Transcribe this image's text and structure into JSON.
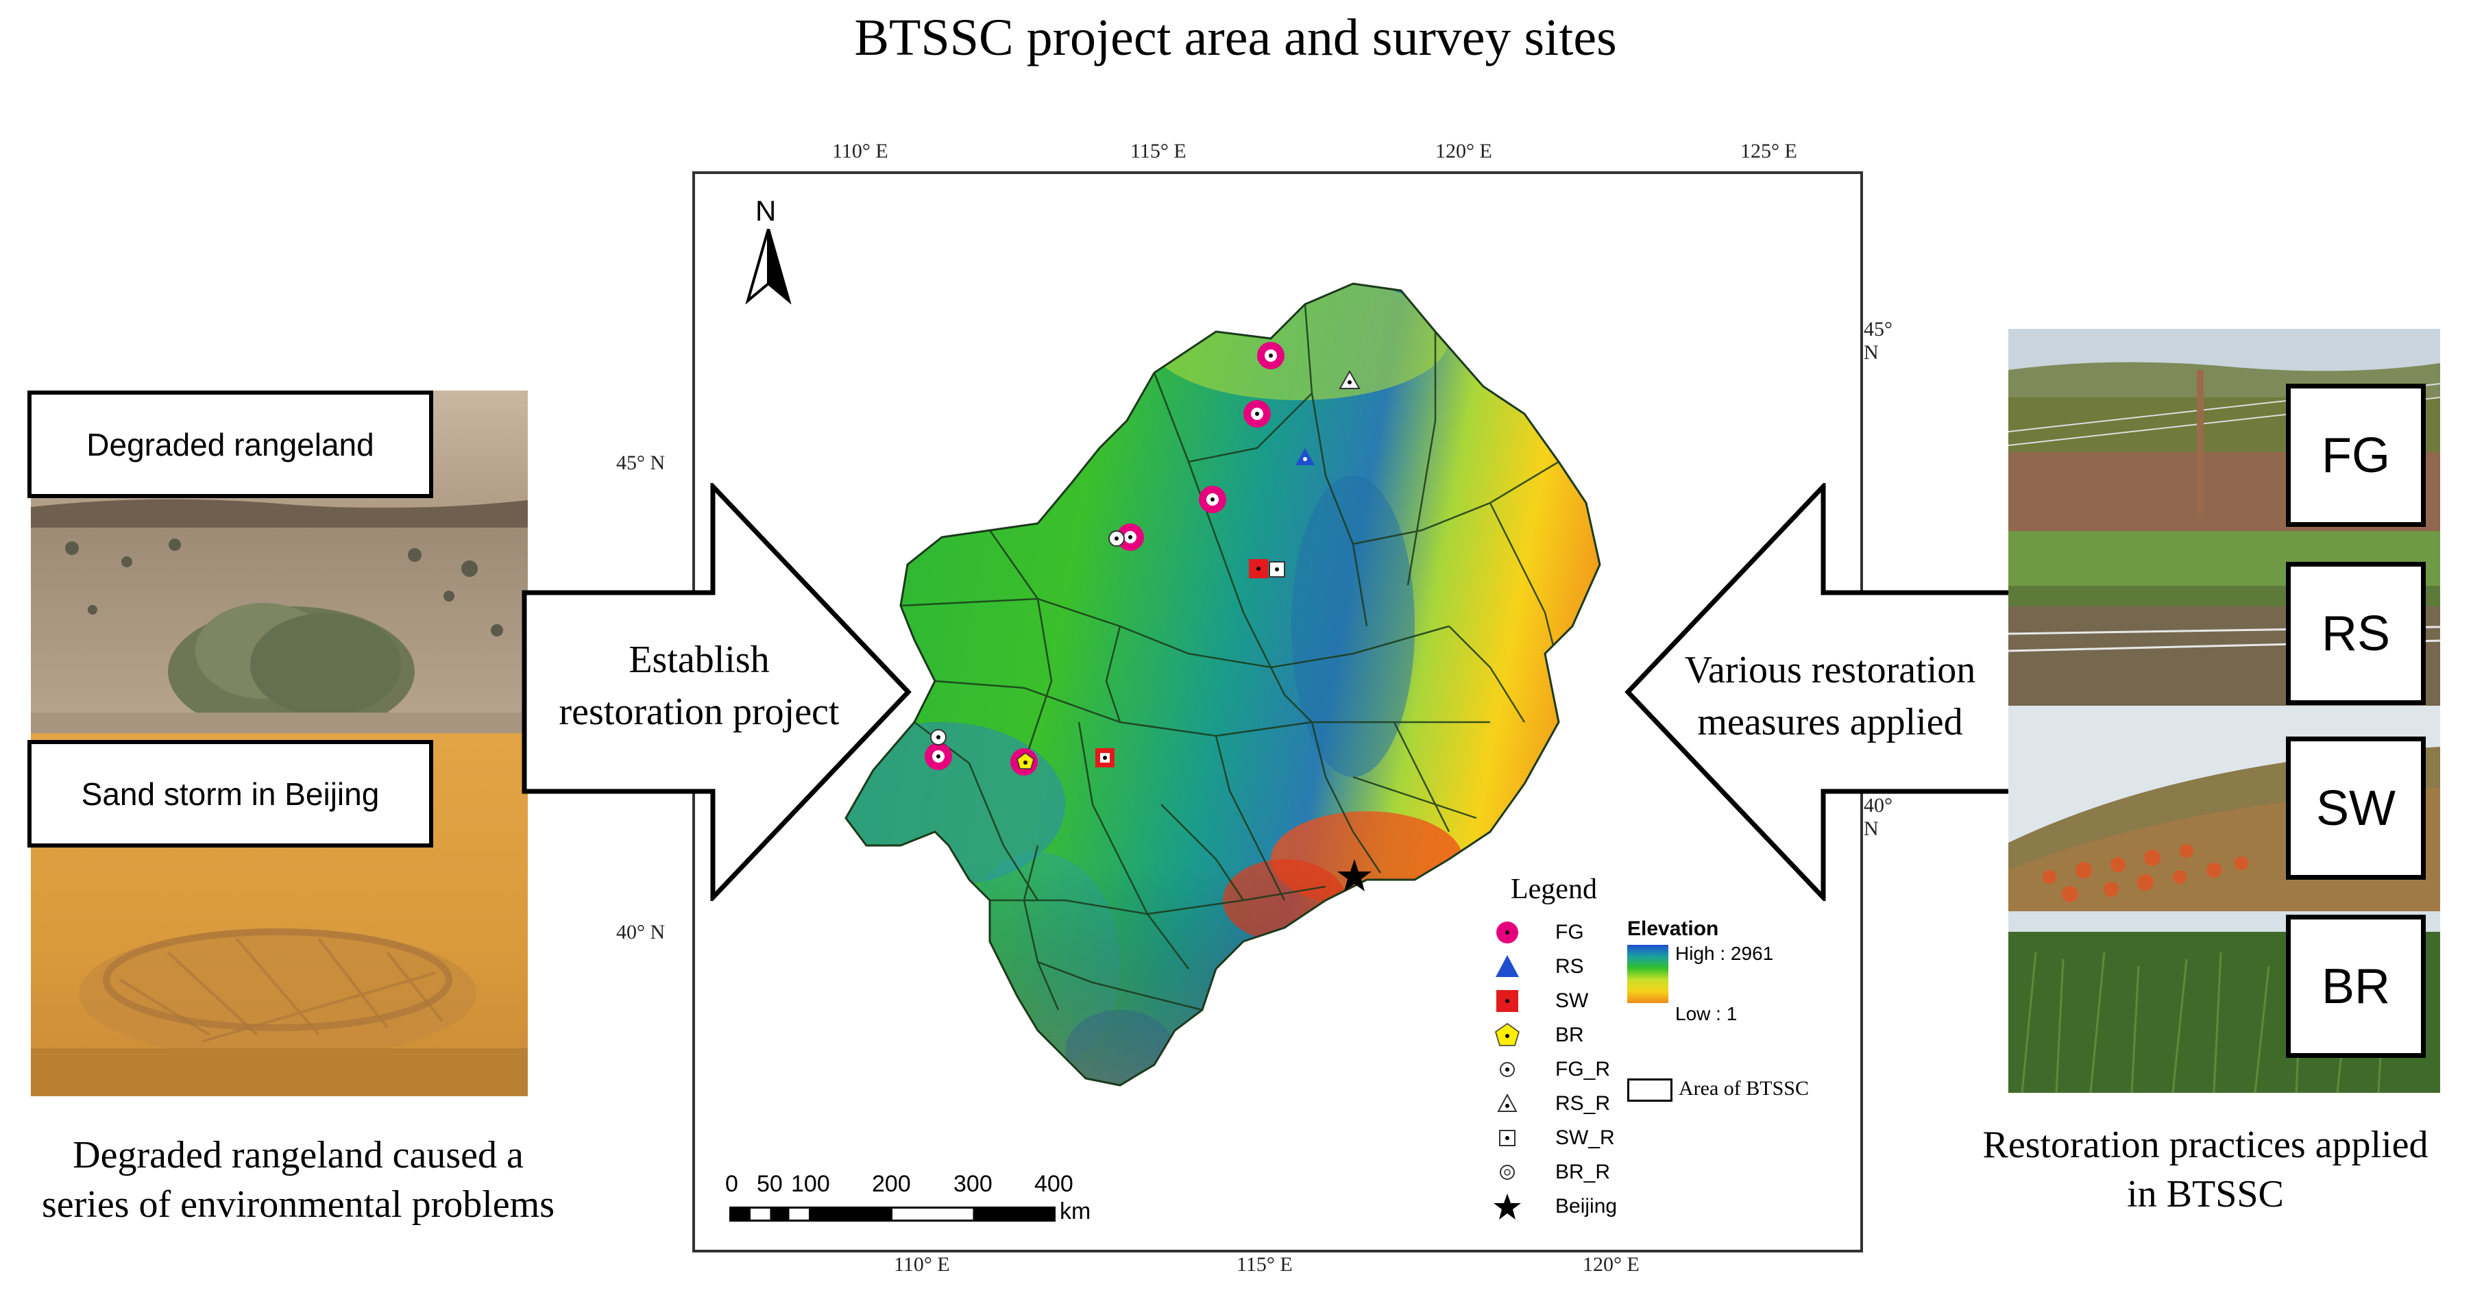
{
  "title": "BTSSC project area and  survey sites",
  "left_panel": {
    "label_top": "Degraded rangeland",
    "label_bottom": "Sand storm in Beijing",
    "caption_line1": "Degraded rangeland caused a",
    "caption_line2": "series of environmental problems"
  },
  "left_arrow": {
    "line1": "Establish",
    "line2": "restoration project"
  },
  "right_arrow": {
    "line1": "Various restoration",
    "line2": "measures applied"
  },
  "right_panel": {
    "codes": [
      "FG",
      "RS",
      "SW",
      "BR"
    ],
    "caption_line1": "Restoration practices applied",
    "caption_line2": "in BTSSC"
  },
  "map": {
    "north_label": "N",
    "top_ticks": [
      "110°  E",
      "115°  E",
      "120°  E",
      "125°  E"
    ],
    "bottom_ticks": [
      "110°  E",
      "115°  E",
      "120°  E"
    ],
    "left_ticks": [
      "45°  N",
      "40°  N"
    ],
    "right_ticks": [
      "45°  N",
      "40°  N"
    ],
    "legend": {
      "title": "Legend",
      "items": [
        {
          "label": "FG",
          "symbol": "fg"
        },
        {
          "label": "RS",
          "symbol": "rs"
        },
        {
          "label": "SW",
          "symbol": "sw"
        },
        {
          "label": "BR",
          "symbol": "br"
        },
        {
          "label": "FG_R",
          "symbol": "fg_r"
        },
        {
          "label": "RS_R",
          "symbol": "rs_r"
        },
        {
          "label": "SW_R",
          "symbol": "sw_r"
        },
        {
          "label": "BR_R",
          "symbol": "br_r"
        },
        {
          "label": "Beijing",
          "symbol": "star"
        }
      ],
      "elevation_title": "Elevation",
      "elevation_high": "High : 2961",
      "elevation_low": "Low : 1",
      "area_label": "Area of BTSSC"
    },
    "scale": {
      "labels": [
        "0",
        "50",
        "100",
        "200",
        "300",
        "400"
      ],
      "unit": "km"
    },
    "colors": {
      "fg": "#e6007e",
      "rs": "#1f4fd0",
      "sw": "#e41a1c",
      "br": "#ffee00",
      "beijing": "#000000"
    }
  }
}
